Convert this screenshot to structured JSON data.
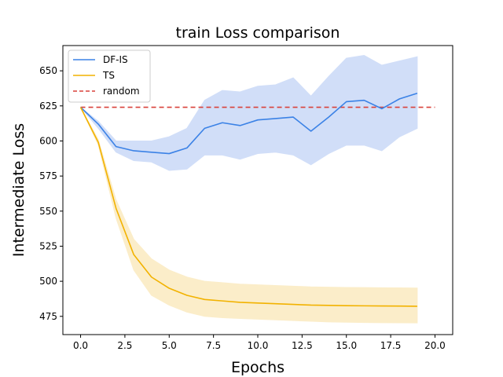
{
  "chart_data": {
    "type": "line",
    "title": "train Loss comparison",
    "xlabel": "Epochs",
    "ylabel": "Intermediate Loss",
    "xlim": [
      -1,
      21
    ],
    "ylim": [
      462,
      668
    ],
    "xticks": [
      "0.0",
      "2.5",
      "5.0",
      "7.5",
      "10.0",
      "12.5",
      "15.0",
      "17.5",
      "20.0"
    ],
    "yticks": [
      "475",
      "500",
      "525",
      "550",
      "575",
      "600",
      "625",
      "650"
    ],
    "grid": false,
    "legend_position": "top-left",
    "x": [
      0,
      1,
      2,
      3,
      4,
      5,
      6,
      7,
      8,
      9,
      10,
      11,
      12,
      13,
      14,
      15,
      16,
      17,
      18,
      19
    ],
    "series": [
      {
        "name": "DF-IS",
        "color": "#3b82e6",
        "band_color": "#c9d9f7",
        "values": [
          624,
          612,
          596,
          593,
          592,
          591,
          595,
          609,
          613,
          611,
          615,
          616,
          617,
          607,
          617,
          628,
          629,
          623,
          630,
          634
        ],
        "lower": [
          624,
          609,
          592,
          586,
          585,
          579,
          580,
          590,
          590,
          587,
          591,
          592,
          590,
          583,
          591,
          597,
          597,
          593,
          603,
          609
        ],
        "upper": [
          624,
          614,
          600,
          600,
          600,
          603,
          609,
          629,
          636,
          635,
          639,
          640,
          645,
          632,
          646,
          659,
          661,
          654,
          657,
          660
        ]
      },
      {
        "name": "TS",
        "color": "#f2b200",
        "band_color": "#fbeac0",
        "values": [
          624,
          599,
          552,
          519,
          503,
          495,
          490,
          487,
          486,
          485,
          484.5,
          484,
          483.5,
          483,
          482.8,
          482.6,
          482.5,
          482.4,
          482.3,
          482.2
        ],
        "lower": [
          624,
          597,
          545,
          508,
          490,
          483,
          478,
          475,
          474,
          473.5,
          473,
          472.5,
          472,
          471.5,
          471,
          470.8,
          470.6,
          470.5,
          470.4,
          470.3
        ],
        "upper": [
          624,
          601,
          558,
          530,
          516,
          508,
          503,
          500,
          499,
          498,
          497.5,
          497,
          496.5,
          496,
          495.8,
          495.6,
          495.5,
          495.4,
          495.3,
          495.2
        ]
      }
    ],
    "reference_line": {
      "name": "random",
      "color": "#d9413a",
      "style": "dashed",
      "value": 624,
      "x_range": [
        0,
        20
      ]
    }
  }
}
